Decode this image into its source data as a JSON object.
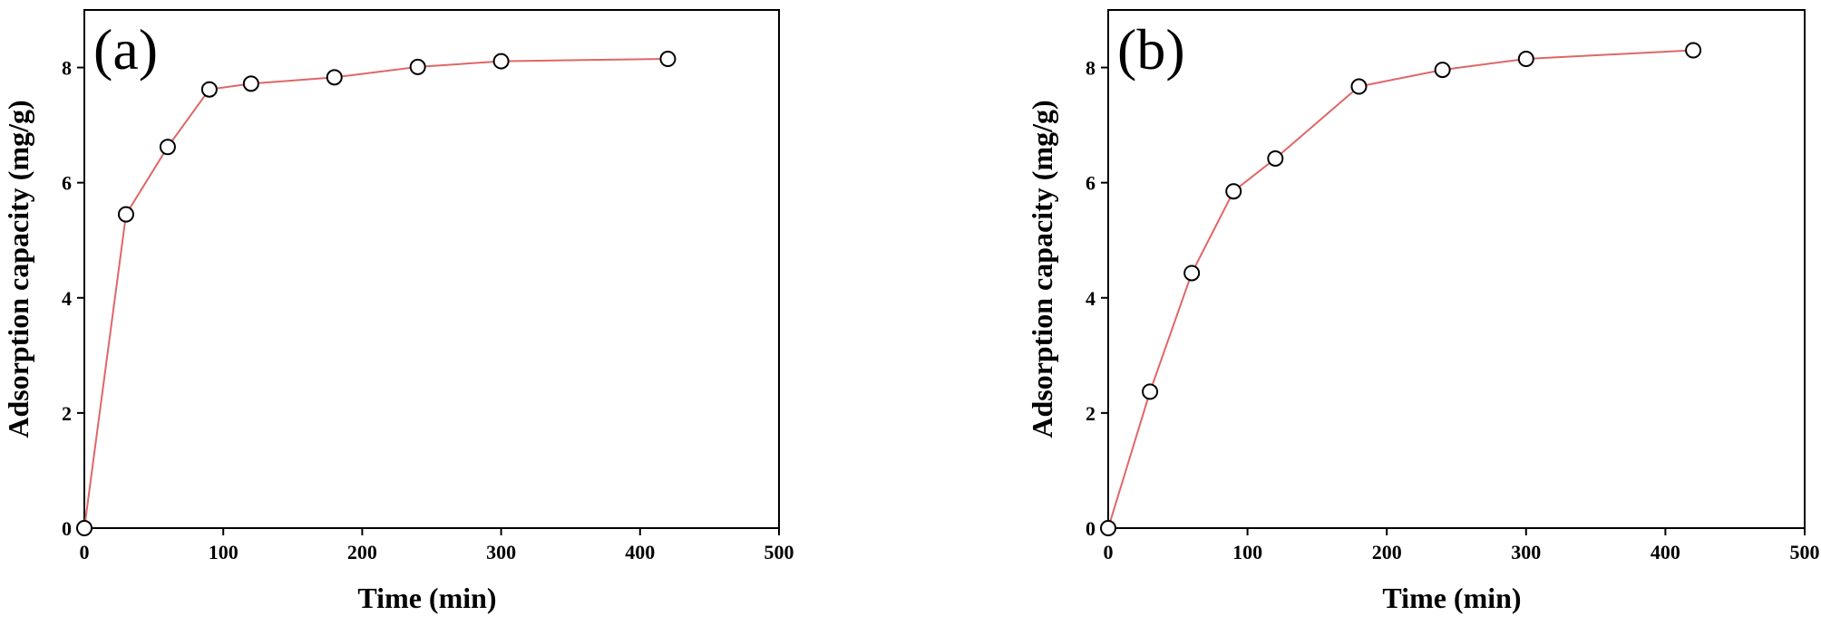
{
  "chart_data": [
    {
      "type": "line",
      "panel_label": "(a)",
      "xlabel": "Time (min)",
      "ylabel": "Adsorption capacity (mg/g)",
      "xlim": [
        0,
        500
      ],
      "ylim": [
        0,
        9
      ],
      "xticks": [
        0,
        100,
        200,
        300,
        400,
        500
      ],
      "yticks": [
        0,
        2,
        4,
        6,
        8
      ],
      "grid": false,
      "line_color": "#e06666",
      "series": [
        {
          "x": [
            0,
            30,
            60,
            90,
            120,
            180,
            240,
            300,
            420
          ],
          "y": [
            0,
            5.45,
            6.62,
            7.62,
            7.72,
            7.83,
            8.01,
            8.11,
            8.15
          ]
        }
      ]
    },
    {
      "type": "line",
      "panel_label": "(b)",
      "xlabel": "Time (min)",
      "ylabel": "Adsorption capacity (mg/g)",
      "xlim": [
        0,
        500
      ],
      "ylim": [
        0,
        9
      ],
      "xticks": [
        0,
        100,
        200,
        300,
        400,
        500
      ],
      "yticks": [
        0,
        2,
        4,
        6,
        8
      ],
      "grid": false,
      "line_color": "#e06666",
      "series": [
        {
          "x": [
            0,
            30,
            60,
            90,
            120,
            180,
            240,
            300,
            420
          ],
          "y": [
            0,
            2.37,
            4.43,
            5.85,
            6.42,
            7.67,
            7.96,
            8.15,
            8.3
          ]
        }
      ]
    }
  ]
}
